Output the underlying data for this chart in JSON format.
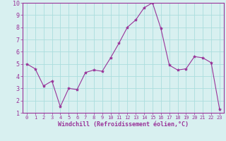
{
  "x": [
    0,
    1,
    2,
    3,
    4,
    5,
    6,
    7,
    8,
    9,
    10,
    11,
    12,
    13,
    14,
    15,
    16,
    17,
    18,
    19,
    20,
    21,
    22,
    23
  ],
  "y": [
    5.0,
    4.6,
    3.2,
    3.6,
    1.5,
    3.0,
    2.9,
    4.3,
    4.5,
    4.4,
    5.5,
    6.7,
    8.0,
    8.6,
    9.6,
    10.0,
    7.9,
    4.9,
    4.5,
    4.6,
    5.6,
    5.5,
    5.1,
    1.3
  ],
  "line_color": "#993399",
  "marker": "*",
  "marker_size": 3,
  "bg_color": "#d8f0f0",
  "grid_color": "#aadddd",
  "xlabel": "Windchill (Refroidissement éolien,°C)",
  "xlim": [
    -0.5,
    23.5
  ],
  "ylim": [
    1,
    10
  ],
  "xticks": [
    0,
    1,
    2,
    3,
    4,
    5,
    6,
    7,
    8,
    9,
    10,
    11,
    12,
    13,
    14,
    15,
    16,
    17,
    18,
    19,
    20,
    21,
    22,
    23
  ],
  "yticks": [
    1,
    2,
    3,
    4,
    5,
    6,
    7,
    8,
    9,
    10
  ],
  "tick_color": "#993399",
  "label_color": "#993399",
  "font_name": "monospace"
}
